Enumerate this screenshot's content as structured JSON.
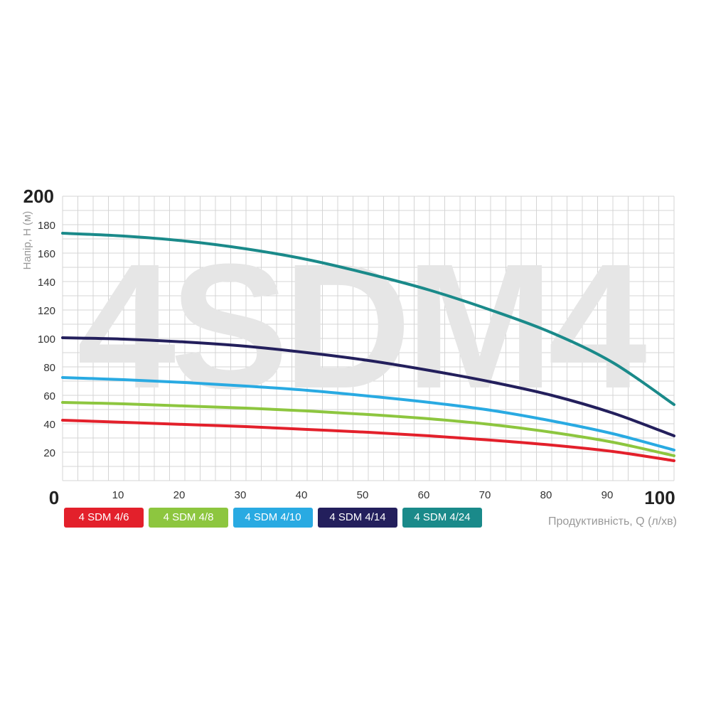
{
  "chart_data": {
    "type": "line",
    "watermark": "4SDM4",
    "ylabel": "Напір, H (м)",
    "xlabel": "Продуктивність, Q (л/хв)",
    "xlim": [
      0,
      100
    ],
    "ylim": [
      0,
      200
    ],
    "xticks": [
      "0",
      "10",
      "20",
      "30",
      "40",
      "50",
      "60",
      "70",
      "80",
      "90",
      "100"
    ],
    "yticks": [
      "20",
      "40",
      "60",
      "80",
      "100",
      "120",
      "140",
      "160",
      "180",
      "200"
    ],
    "grid": true,
    "legend_position": "bottom-left",
    "x": [
      0,
      10,
      20,
      30,
      40,
      50,
      60,
      70,
      80,
      90,
      100
    ],
    "series": [
      {
        "name": "4 SDM 4/6",
        "color": "#e3202b",
        "values": [
          42.5,
          41,
          39.5,
          38,
          36,
          34,
          31.5,
          28.5,
          25,
          20.5,
          14
        ]
      },
      {
        "name": "4 SDM 4/8",
        "color": "#8dc63f",
        "values": [
          55,
          54,
          52.5,
          51,
          49,
          46.5,
          43.5,
          39.5,
          34,
          27,
          17.5
        ]
      },
      {
        "name": "4 SDM 4/10",
        "color": "#29aae2",
        "values": [
          72.5,
          71,
          69,
          66.5,
          63.5,
          59.5,
          55,
          49.5,
          42,
          33,
          21.5
        ]
      },
      {
        "name": "4 SDM 4/14",
        "color": "#231f5c",
        "values": [
          100.5,
          99.5,
          97.5,
          94.5,
          90,
          84.5,
          77.5,
          69.5,
          60,
          47.5,
          31.5
        ]
      },
      {
        "name": "4 SDM 4/24",
        "color": "#1a8a8a",
        "values": [
          174,
          172,
          168.5,
          163,
          155.5,
          145.5,
          134,
          120,
          104,
          83,
          53.5
        ]
      }
    ]
  }
}
